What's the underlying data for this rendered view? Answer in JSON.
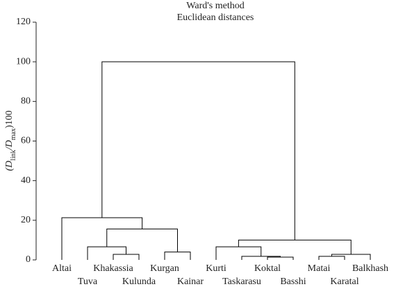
{
  "chart_data": {
    "type": "dendrogram",
    "title": "Ward's method",
    "subtitle": "Euclidean distances",
    "y_label": [
      "(D",
      "link",
      "/D",
      "max",
      ")100"
    ],
    "ylim": [
      0,
      120
    ],
    "yticks": [
      0,
      20,
      40,
      60,
      80,
      100,
      120
    ],
    "color": "#000000",
    "tree": {
      "height": 100,
      "children": [
        {
          "height": 21.3,
          "children": [
            {
              "label": "Altai"
            },
            {
              "height": 15.6,
              "children": [
                {
                  "height": 6.6,
                  "children": [
                    {
                      "label": "Tuva"
                    },
                    {
                      "height": 2.8,
                      "children": [
                        {
                          "label": "Khakassia"
                        },
                        {
                          "label": "Kulunda"
                        }
                      ]
                    }
                  ]
                },
                {
                  "height": 4,
                  "children": [
                    {
                      "label": "Kurgan"
                    },
                    {
                      "label": "Kainar"
                    }
                  ]
                }
              ]
            }
          ]
        },
        {
          "height": 10,
          "children": [
            {
              "height": 6.6,
              "children": [
                {
                  "label": "Kurti"
                },
                {
                  "height": 1.8,
                  "children": [
                    {
                      "label": "Taskarasu"
                    },
                    {
                      "height": 1.4,
                      "children": [
                        {
                          "label": "Koktal"
                        },
                        {
                          "label": "Basshi"
                        }
                      ]
                    }
                  ]
                }
              ]
            },
            {
              "height": 2.8,
              "children": [
                {
                  "height": 1.8,
                  "children": [
                    {
                      "label": "Matai"
                    },
                    {
                      "label": "Karatal"
                    }
                  ]
                },
                {
                  "label": "Balkhash"
                }
              ]
            }
          ]
        }
      ]
    }
  }
}
